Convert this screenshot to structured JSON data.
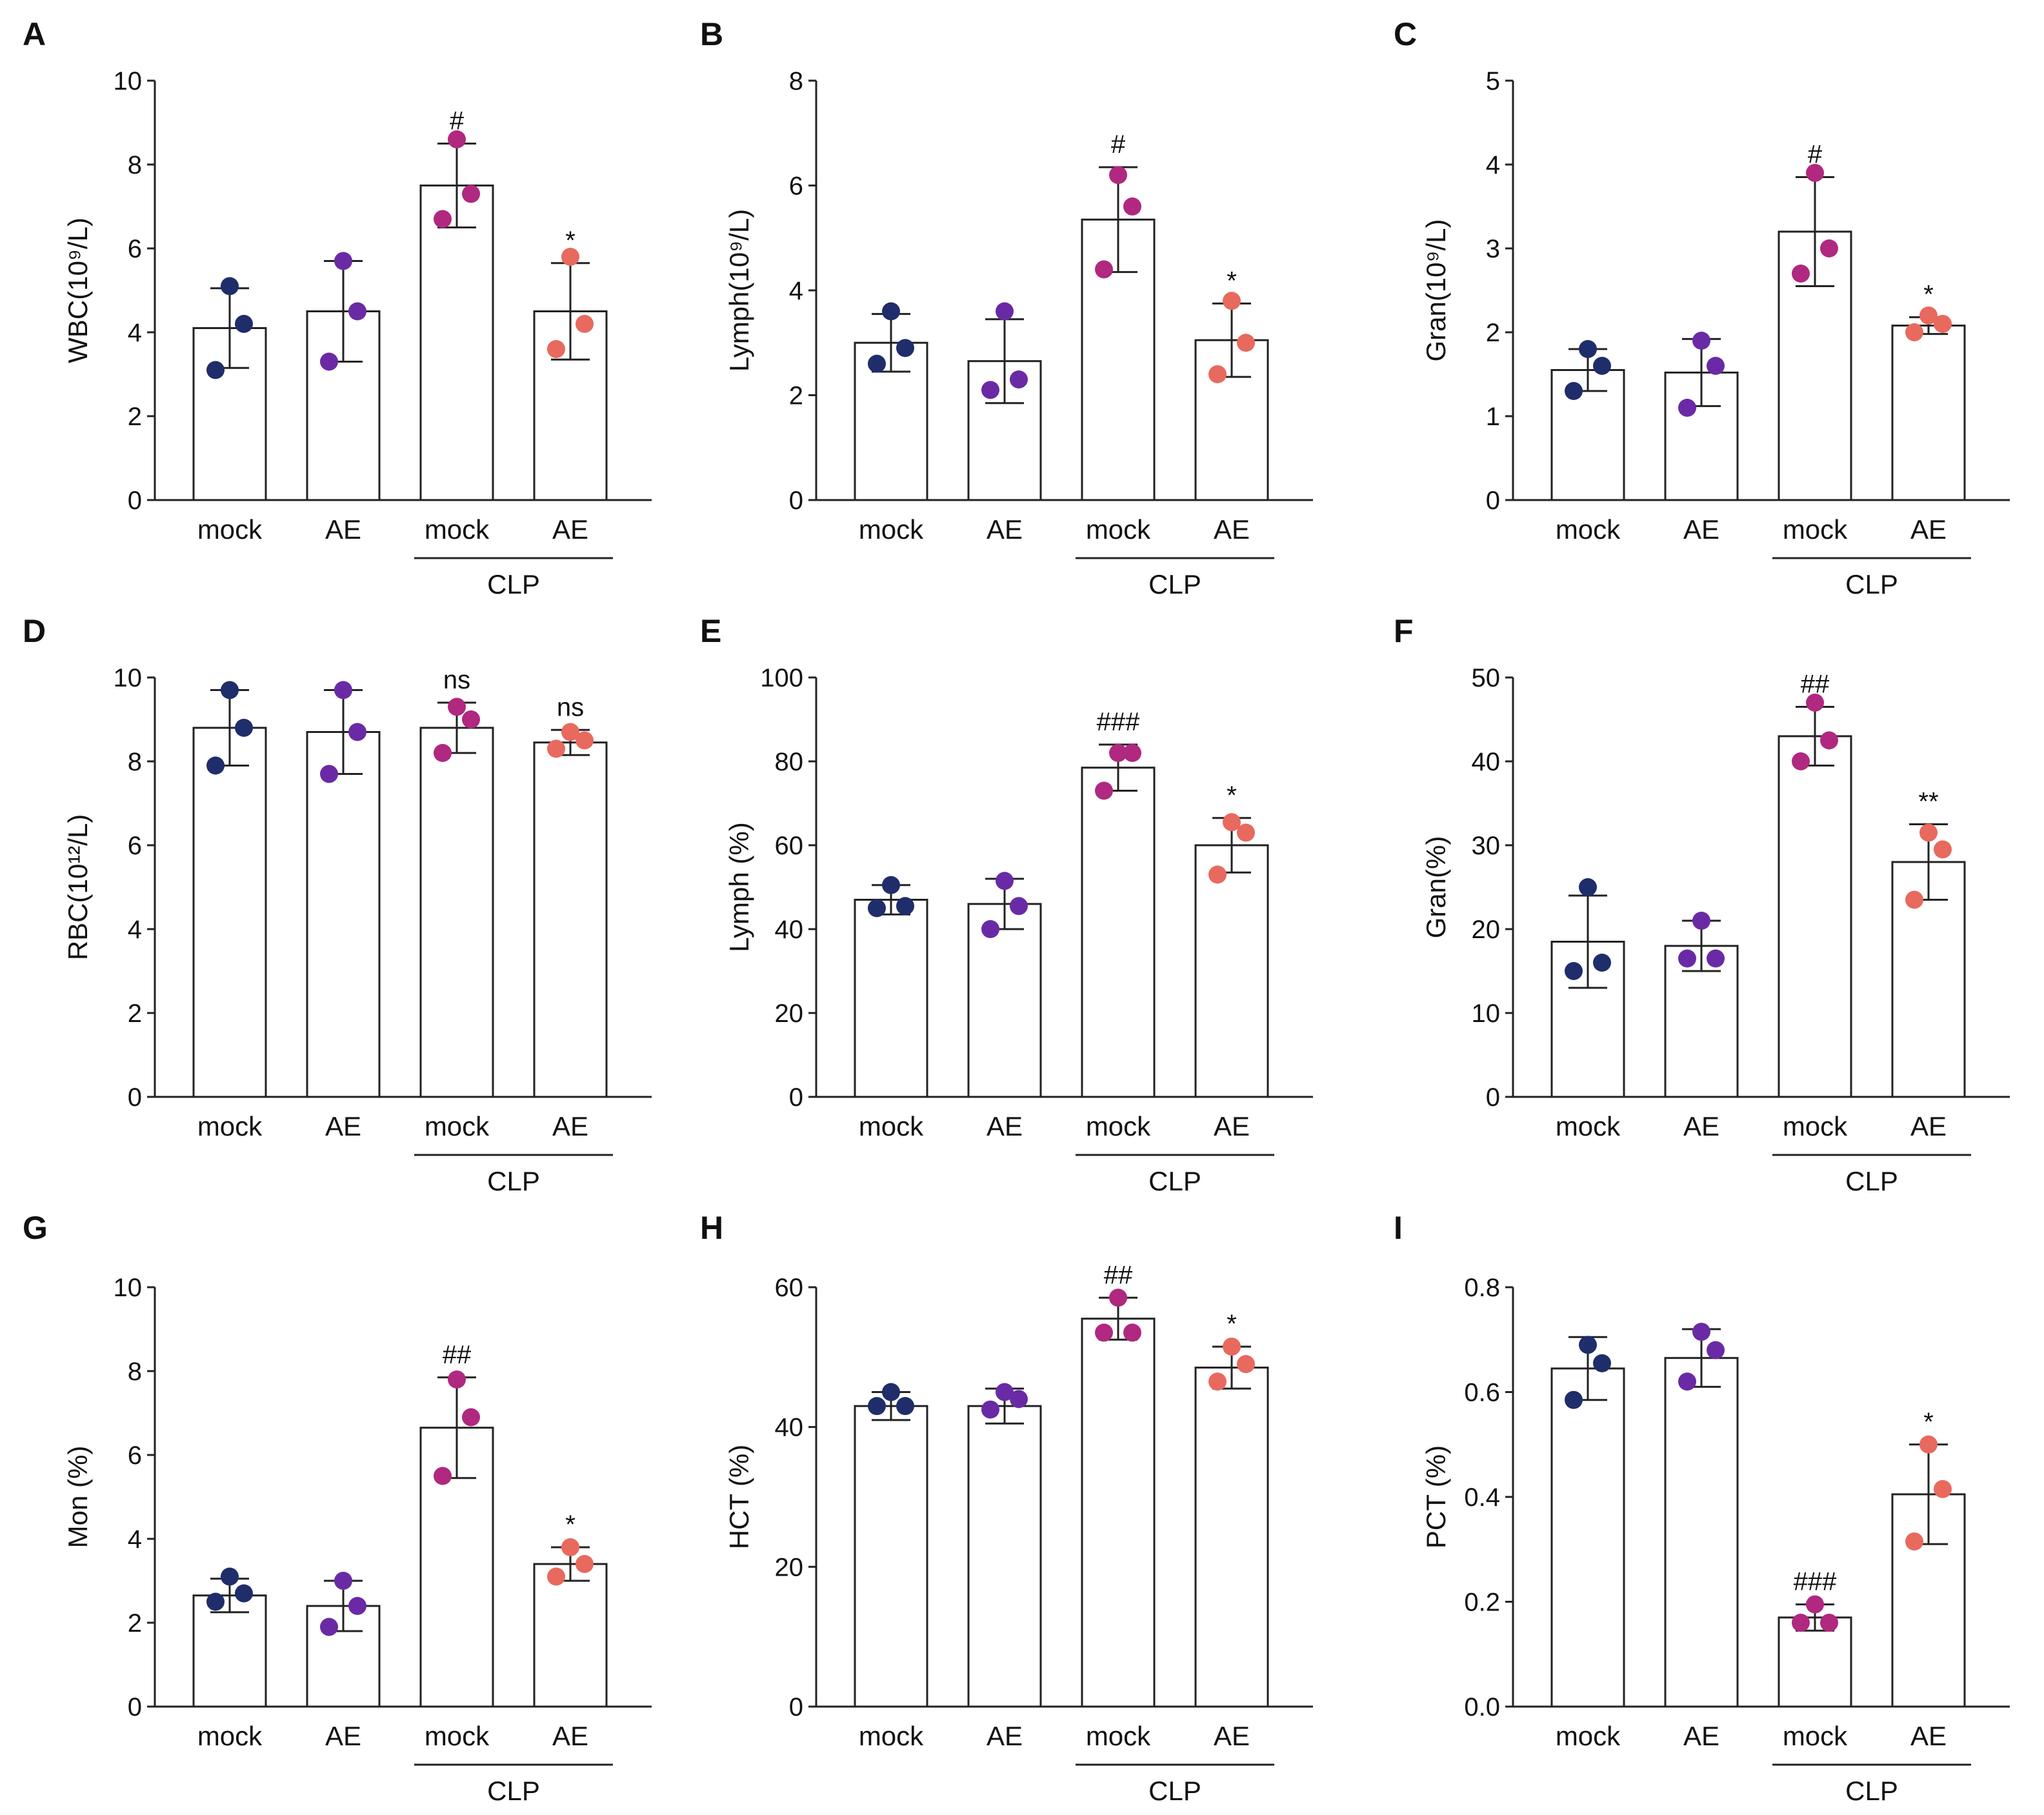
{
  "figure_title": "",
  "colors": {
    "mock": "#1f2d6b",
    "AE": "#6a2aa5",
    "CLP_mock": "#b0287f",
    "CLP_AE": "#e8695e",
    "bar_fill": "#ffffff",
    "stroke": "#222222"
  },
  "chart_data": [
    {
      "panel": "A",
      "type": "bar",
      "ylabel": "WBC(10⁹/L)",
      "ylim": [
        0,
        10
      ],
      "yticks": [
        "0",
        "2",
        "4",
        "6",
        "8",
        "10"
      ],
      "categories": [
        "mock",
        "AE",
        "mock",
        "AE"
      ],
      "group_label": "CLP",
      "values": [
        4.1,
        4.5,
        7.5,
        4.5
      ],
      "error": [
        0.95,
        1.2,
        1.0,
        1.15
      ],
      "points": [
        [
          5.1,
          4.2,
          3.1
        ],
        [
          5.7,
          4.5,
          3.3
        ],
        [
          8.6,
          7.3,
          6.7
        ],
        [
          5.8,
          4.2,
          3.6
        ]
      ],
      "significance": [
        "",
        "",
        "#",
        "*"
      ]
    },
    {
      "panel": "B",
      "type": "bar",
      "ylabel": "Lymph(10⁹/L)",
      "ylim": [
        0,
        8
      ],
      "yticks": [
        "0",
        "2",
        "4",
        "6",
        "8"
      ],
      "categories": [
        "mock",
        "AE",
        "mock",
        "AE"
      ],
      "group_label": "CLP",
      "values": [
        3.0,
        2.65,
        5.35,
        3.05
      ],
      "error": [
        0.55,
        0.8,
        1.0,
        0.7
      ],
      "points": [
        [
          3.6,
          2.9,
          2.6
        ],
        [
          3.6,
          2.3,
          2.1
        ],
        [
          6.2,
          5.6,
          4.4
        ],
        [
          3.8,
          3.0,
          2.4
        ]
      ],
      "significance": [
        "",
        "",
        "#",
        "*"
      ]
    },
    {
      "panel": "C",
      "type": "bar",
      "ylabel": "Gran(10⁹/L)",
      "ylim": [
        0,
        5
      ],
      "yticks": [
        "0",
        "1",
        "2",
        "3",
        "4",
        "5"
      ],
      "categories": [
        "mock",
        "AE",
        "mock",
        "AE"
      ],
      "group_label": "CLP",
      "values": [
        1.55,
        1.52,
        3.2,
        2.08
      ],
      "error": [
        0.25,
        0.4,
        0.65,
        0.1
      ],
      "points": [
        [
          1.8,
          1.6,
          1.3
        ],
        [
          1.9,
          1.6,
          1.1
        ],
        [
          3.9,
          3.0,
          2.7
        ],
        [
          2.2,
          2.1,
          2.0
        ]
      ],
      "significance": [
        "",
        "",
        "#",
        "*"
      ]
    },
    {
      "panel": "D",
      "type": "bar",
      "ylabel": "RBC(10¹²/L)",
      "ylim": [
        0,
        10
      ],
      "yticks": [
        "0",
        "2",
        "4",
        "6",
        "8",
        "10"
      ],
      "categories": [
        "mock",
        "AE",
        "mock",
        "AE"
      ],
      "group_label": "CLP",
      "values": [
        8.8,
        8.7,
        8.8,
        8.45
      ],
      "error": [
        0.9,
        1.0,
        0.6,
        0.3
      ],
      "points": [
        [
          9.7,
          8.8,
          7.9
        ],
        [
          9.7,
          8.7,
          7.7
        ],
        [
          9.3,
          9.0,
          8.2
        ],
        [
          8.7,
          8.5,
          8.3
        ]
      ],
      "significance": [
        "",
        "",
        "ns",
        "ns"
      ]
    },
    {
      "panel": "E",
      "type": "bar",
      "ylabel": "Lymph (%)",
      "ylim": [
        0,
        100
      ],
      "yticks": [
        "0",
        "20",
        "40",
        "60",
        "80",
        "100"
      ],
      "categories": [
        "mock",
        "AE",
        "mock",
        "AE"
      ],
      "group_label": "CLP",
      "values": [
        47,
        46,
        78.5,
        60
      ],
      "error": [
        3.5,
        6.0,
        5.5,
        6.5
      ],
      "points": [
        [
          50.5,
          45.5,
          45.0
        ],
        [
          51.5,
          45.5,
          40.0
        ],
        [
          82.0,
          82.0,
          73.0
        ],
        [
          65.5,
          63.0,
          53.0
        ]
      ],
      "significance": [
        "",
        "",
        "###",
        "*"
      ]
    },
    {
      "panel": "F",
      "type": "bar",
      "ylabel": "Gran(%)",
      "ylim": [
        0,
        50
      ],
      "yticks": [
        "0",
        "10",
        "20",
        "30",
        "40",
        "50"
      ],
      "categories": [
        "mock",
        "AE",
        "mock",
        "AE"
      ],
      "group_label": "CLP",
      "values": [
        18.5,
        18.0,
        43,
        28
      ],
      "error": [
        5.5,
        3.0,
        3.5,
        4.5
      ],
      "points": [
        [
          25.0,
          16.0,
          15.0
        ],
        [
          21.0,
          16.5,
          16.5
        ],
        [
          47.0,
          42.5,
          40.0
        ],
        [
          31.5,
          29.5,
          23.5
        ]
      ],
      "significance": [
        "",
        "",
        "##",
        "**"
      ]
    },
    {
      "panel": "G",
      "type": "bar",
      "ylabel": "Mon (%)",
      "ylim": [
        0,
        10
      ],
      "yticks": [
        "0",
        "2",
        "4",
        "6",
        "8",
        "10"
      ],
      "categories": [
        "mock",
        "AE",
        "mock",
        "AE"
      ],
      "group_label": "CLP",
      "values": [
        2.65,
        2.4,
        6.65,
        3.4
      ],
      "error": [
        0.4,
        0.6,
        1.2,
        0.4
      ],
      "points": [
        [
          3.1,
          2.7,
          2.5
        ],
        [
          3.0,
          2.4,
          1.9
        ],
        [
          7.8,
          6.9,
          5.5
        ],
        [
          3.8,
          3.4,
          3.1
        ]
      ],
      "significance": [
        "",
        "",
        "##",
        "*"
      ]
    },
    {
      "panel": "H",
      "type": "bar",
      "ylabel": "HCT (%)",
      "ylim": [
        0,
        60
      ],
      "yticks": [
        "0",
        "20",
        "40",
        "60"
      ],
      "categories": [
        "mock",
        "AE",
        "mock",
        "AE"
      ],
      "group_label": "CLP",
      "values": [
        43,
        43,
        55.5,
        48.5
      ],
      "error": [
        2.0,
        2.5,
        3.0,
        3.0
      ],
      "points": [
        [
          45.0,
          43.0,
          43.0
        ],
        [
          45.0,
          44.0,
          42.5
        ],
        [
          58.5,
          53.5,
          53.5
        ],
        [
          51.5,
          49.0,
          46.5
        ]
      ],
      "significance": [
        "",
        "",
        "##",
        "*"
      ]
    },
    {
      "panel": "I",
      "type": "bar",
      "ylabel": "PCT (%)",
      "ylim": [
        0,
        0.8
      ],
      "yticks": [
        "0.0",
        "0.2",
        "0.4",
        "0.6",
        "0.8"
      ],
      "categories": [
        "mock",
        "AE",
        "mock",
        "AE"
      ],
      "group_label": "CLP",
      "values": [
        0.645,
        0.665,
        0.17,
        0.405
      ],
      "error": [
        0.06,
        0.055,
        0.025,
        0.095
      ],
      "points": [
        [
          0.69,
          0.655,
          0.585
        ],
        [
          0.715,
          0.68,
          0.62
        ],
        [
          0.195,
          0.16,
          0.16
        ],
        [
          0.5,
          0.415,
          0.315
        ]
      ],
      "significance": [
        "",
        "",
        "###",
        "*"
      ]
    }
  ]
}
